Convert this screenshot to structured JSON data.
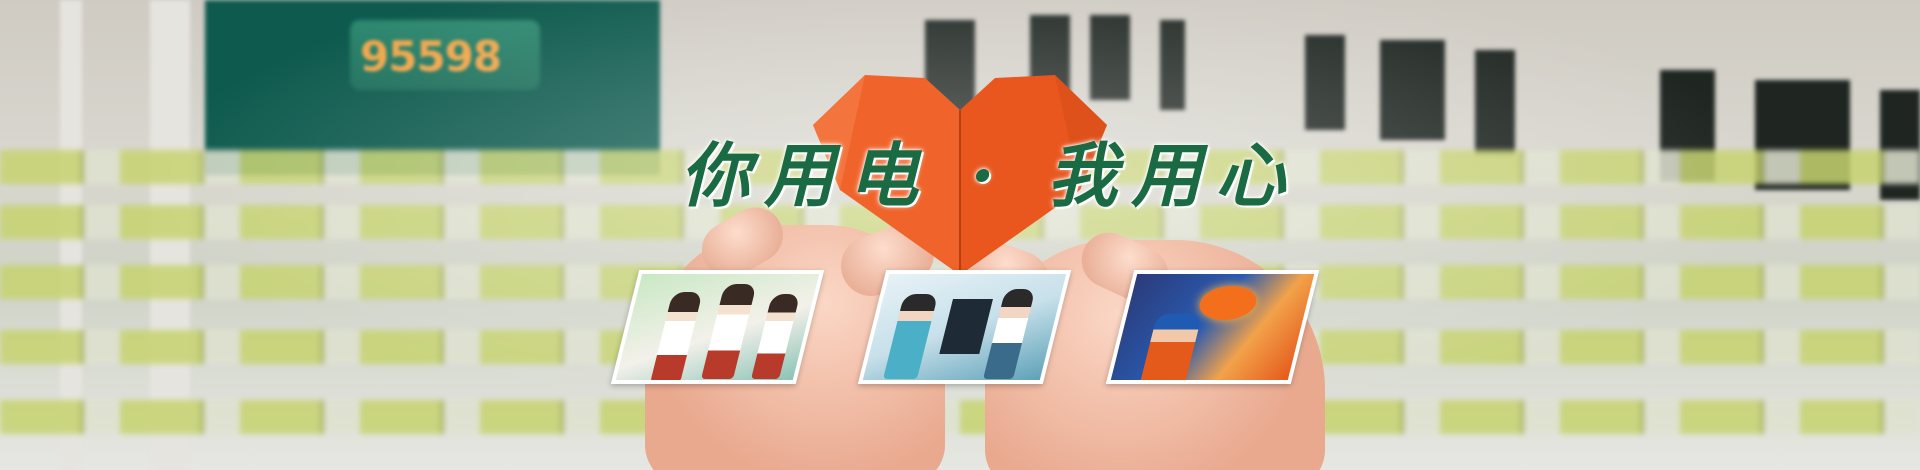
{
  "slogan": "你用电 · 我用心",
  "sign_text": "95598",
  "colors": {
    "heart": "#f0642c",
    "slogan": "#1a6b44",
    "wall_sign": "#0e5a4e"
  },
  "panels": [
    {
      "name": "service-staff-photo"
    },
    {
      "name": "service-hall-photo"
    },
    {
      "name": "power-worker-photo"
    }
  ]
}
